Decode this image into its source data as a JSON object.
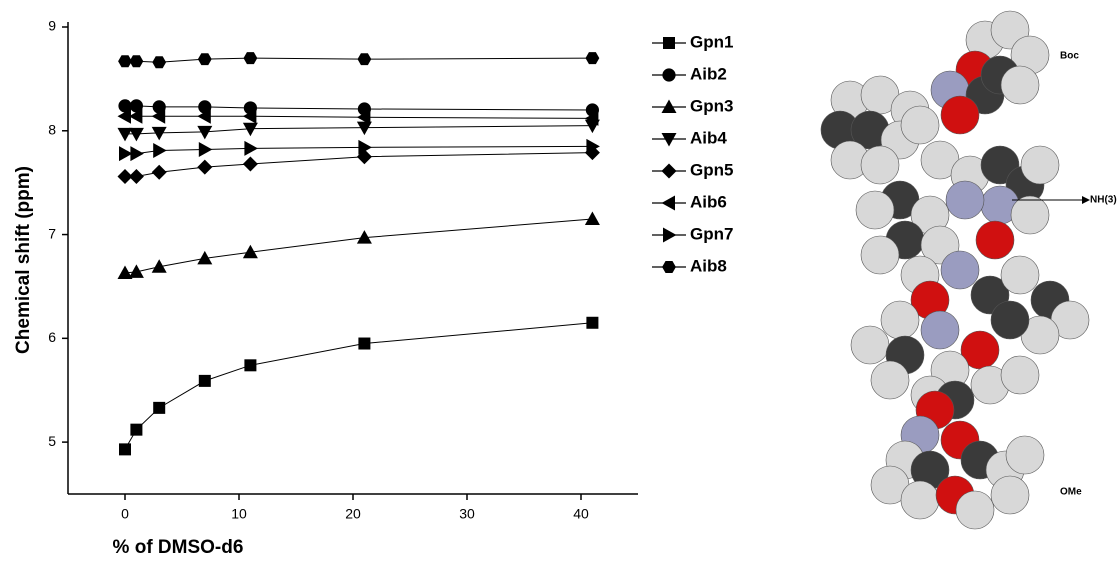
{
  "chart_data": {
    "type": "line",
    "x_label": "% of DMSO-d6",
    "y_label": "Chemical shift (ppm)",
    "x": [
      0,
      1,
      3,
      7,
      11,
      21,
      41
    ],
    "xlim": [
      -5,
      45
    ],
    "xticks": [
      0,
      10,
      20,
      30,
      40
    ],
    "ylim": [
      4.5,
      9
    ],
    "yticks": [
      5,
      6,
      7,
      8,
      9
    ],
    "series": [
      {
        "name": "Gpn1",
        "marker": "square",
        "color": "#000",
        "values": [
          4.93,
          5.12,
          5.33,
          5.59,
          5.74,
          5.95,
          6.15
        ]
      },
      {
        "name": "Aib2",
        "marker": "circle",
        "color": "#000",
        "values": [
          8.24,
          8.24,
          8.23,
          8.23,
          8.22,
          8.21,
          8.2
        ]
      },
      {
        "name": "Gpn3",
        "marker": "triangle-up",
        "color": "#000",
        "values": [
          6.63,
          6.64,
          6.69,
          6.77,
          6.83,
          6.97,
          7.15
        ]
      },
      {
        "name": "Aib4",
        "marker": "triangle-down",
        "color": "#000",
        "values": [
          7.97,
          7.97,
          7.98,
          7.99,
          8.02,
          8.03,
          8.05
        ]
      },
      {
        "name": "Gpn5",
        "marker": "diamond",
        "color": "#000",
        "values": [
          7.56,
          7.56,
          7.6,
          7.65,
          7.68,
          7.75,
          7.79
        ]
      },
      {
        "name": "Aib6",
        "marker": "triangle-left",
        "color": "#000",
        "values": [
          8.14,
          8.14,
          8.14,
          8.14,
          8.14,
          8.13,
          8.12
        ]
      },
      {
        "name": "Gpn7",
        "marker": "triangle-right",
        "color": "#000",
        "values": [
          7.78,
          7.78,
          7.81,
          7.82,
          7.83,
          7.84,
          7.85
        ]
      },
      {
        "name": "Aib8",
        "marker": "hexagon",
        "color": "#000",
        "values": [
          8.67,
          8.67,
          8.66,
          8.69,
          8.7,
          8.69,
          8.7
        ]
      }
    ]
  },
  "molecule": {
    "labels": [
      "Boc",
      "NH(3)",
      "OMe"
    ]
  }
}
